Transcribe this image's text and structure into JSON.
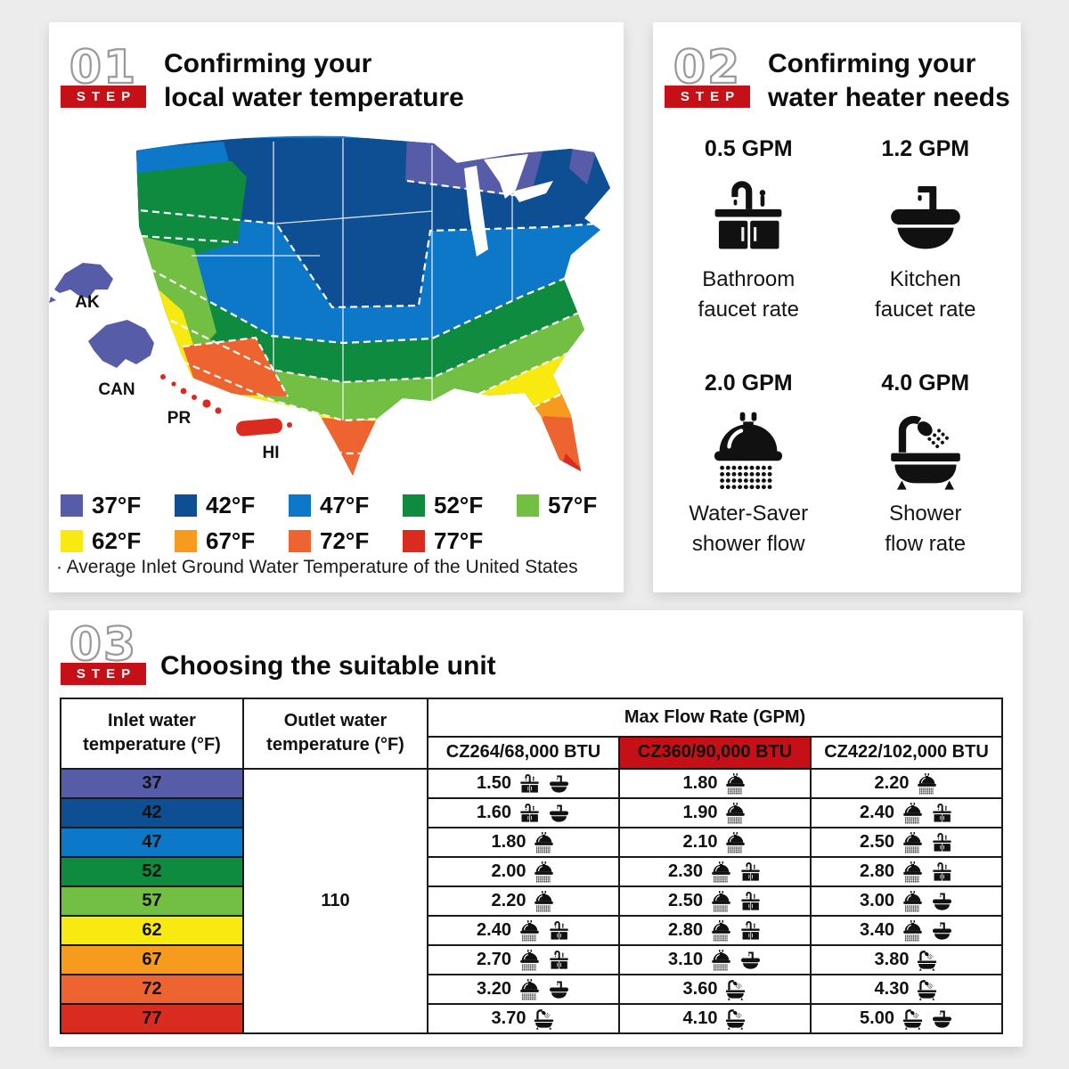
{
  "colors": {
    "accent_red": "#C51017",
    "page_background": "#ECECEC",
    "table_border": "#191919"
  },
  "palette": {
    "f37": "#575CA8",
    "f42": "#0D4F92",
    "f47": "#0E78C8",
    "f52": "#0F8B40",
    "f57": "#72BF44",
    "f62": "#F8EA10",
    "f67": "#F69B1E",
    "f72": "#EE6430",
    "f77": "#DA2B20"
  },
  "step1": {
    "number": "01",
    "step_label": "STEP",
    "title_line1": "Confirming your",
    "title_line2": "local water temperature",
    "map_labels": {
      "ak": "AK",
      "can": "CAN",
      "pr": "PR",
      "hi": "HI"
    },
    "legend": [
      {
        "label": "37°F",
        "band": "f37"
      },
      {
        "label": "42°F",
        "band": "f42"
      },
      {
        "label": "47°F",
        "band": "f47"
      },
      {
        "label": "52°F",
        "band": "f52"
      },
      {
        "label": "57°F",
        "band": "f57"
      },
      {
        "label": "62°F",
        "band": "f62"
      },
      {
        "label": "67°F",
        "band": "f67"
      },
      {
        "label": "72°F",
        "band": "f72"
      },
      {
        "label": "77°F",
        "band": "f77"
      }
    ],
    "note": "· Average Inlet Ground Water Temperature of the United States"
  },
  "step2": {
    "number": "02",
    "step_label": "STEP",
    "title_line1": "Confirming your",
    "title_line2": "water heater needs",
    "items": [
      {
        "value": "0.5 GPM",
        "icon": "bathroom-faucet",
        "label_line1": "Bathroom",
        "label_line2": "faucet rate"
      },
      {
        "value": "1.2 GPM",
        "icon": "kitchen-faucet",
        "label_line1": "Kitchen",
        "label_line2": "faucet rate"
      },
      {
        "value": "2.0 GPM",
        "icon": "showerhead",
        "label_line1": "Water-Saver",
        "label_line2": "shower flow"
      },
      {
        "value": "4.0 GPM",
        "icon": "bathtub",
        "label_line1": "Shower",
        "label_line2": "flow rate"
      }
    ]
  },
  "step3": {
    "number": "03",
    "step_label": "STEP",
    "title": "Choosing the suitable unit",
    "table": {
      "inlet_header_line1": "Inlet water",
      "inlet_header_line2": "temperature (°F)",
      "outlet_header_line1": "Outlet water",
      "outlet_header_line2": "temperature (°F)",
      "flow_header": "Max Flow Rate (GPM)",
      "models": [
        {
          "name": "CZ264/68,000 BTU",
          "highlight": false
        },
        {
          "name": "CZ360/90,000 BTU",
          "highlight": true
        },
        {
          "name": "CZ422/102,000 BTU",
          "highlight": false
        }
      ],
      "outlet_value": "110",
      "rows": [
        {
          "inlet": "37",
          "band": "f37",
          "cells": [
            {
              "value": "1.50",
              "icons": [
                "bathroom-faucet",
                "kitchen-faucet"
              ]
            },
            {
              "value": "1.80",
              "icons": [
                "showerhead"
              ]
            },
            {
              "value": "2.20",
              "icons": [
                "showerhead"
              ]
            }
          ]
        },
        {
          "inlet": "42",
          "band": "f42",
          "cells": [
            {
              "value": "1.60",
              "icons": [
                "bathroom-faucet",
                "kitchen-faucet"
              ]
            },
            {
              "value": "1.90",
              "icons": [
                "showerhead"
              ]
            },
            {
              "value": "2.40",
              "icons": [
                "showerhead",
                "bathroom-faucet"
              ]
            }
          ]
        },
        {
          "inlet": "47",
          "band": "f47",
          "cells": [
            {
              "value": "1.80",
              "icons": [
                "showerhead"
              ]
            },
            {
              "value": "2.10",
              "icons": [
                "showerhead"
              ]
            },
            {
              "value": "2.50",
              "icons": [
                "showerhead",
                "bathroom-faucet"
              ]
            }
          ]
        },
        {
          "inlet": "52",
          "band": "f52",
          "cells": [
            {
              "value": "2.00",
              "icons": [
                "showerhead"
              ]
            },
            {
              "value": "2.30",
              "icons": [
                "showerhead",
                "bathroom-faucet"
              ]
            },
            {
              "value": "2.80",
              "icons": [
                "showerhead",
                "bathroom-faucet"
              ]
            }
          ]
        },
        {
          "inlet": "57",
          "band": "f57",
          "cells": [
            {
              "value": "2.20",
              "icons": [
                "showerhead"
              ]
            },
            {
              "value": "2.50",
              "icons": [
                "showerhead",
                "bathroom-faucet"
              ]
            },
            {
              "value": "3.00",
              "icons": [
                "showerhead",
                "kitchen-faucet"
              ]
            }
          ]
        },
        {
          "inlet": "62",
          "band": "f62",
          "cells": [
            {
              "value": "2.40",
              "icons": [
                "showerhead",
                "bathroom-faucet"
              ]
            },
            {
              "value": "2.80",
              "icons": [
                "showerhead",
                "bathroom-faucet"
              ]
            },
            {
              "value": "3.40",
              "icons": [
                "showerhead",
                "kitchen-faucet"
              ]
            }
          ]
        },
        {
          "inlet": "67",
          "band": "f67",
          "cells": [
            {
              "value": "2.70",
              "icons": [
                "showerhead",
                "bathroom-faucet"
              ]
            },
            {
              "value": "3.10",
              "icons": [
                "showerhead",
                "kitchen-faucet"
              ]
            },
            {
              "value": "3.80",
              "icons": [
                "bathtub"
              ]
            }
          ]
        },
        {
          "inlet": "72",
          "band": "f72",
          "cells": [
            {
              "value": "3.20",
              "icons": [
                "showerhead",
                "kitchen-faucet"
              ]
            },
            {
              "value": "3.60",
              "icons": [
                "bathtub"
              ]
            },
            {
              "value": "4.30",
              "icons": [
                "bathtub"
              ]
            }
          ]
        },
        {
          "inlet": "77",
          "band": "f77",
          "cells": [
            {
              "value": "3.70",
              "icons": [
                "bathtub"
              ]
            },
            {
              "value": "4.10",
              "icons": [
                "bathtub"
              ]
            },
            {
              "value": "5.00",
              "icons": [
                "bathtub",
                "kitchen-faucet"
              ]
            }
          ]
        }
      ]
    }
  }
}
